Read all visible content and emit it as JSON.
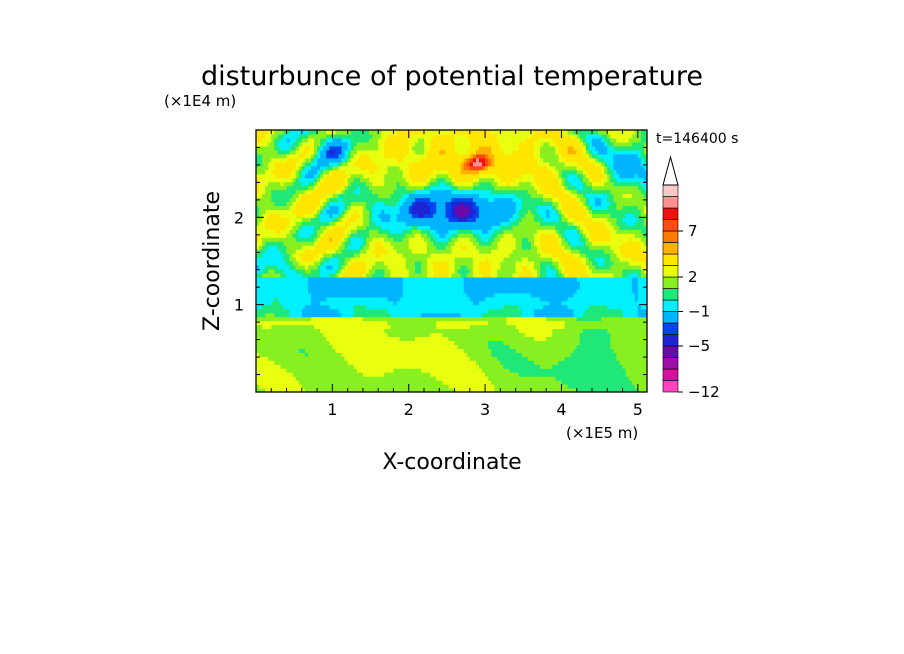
{
  "chart_data": {
    "type": "heatmap",
    "title": "disturbunce of potential temperature",
    "xlabel": "X-coordinate",
    "ylabel": "Z-coordinate",
    "x_unit": "(×1E5 m)",
    "y_unit": "(×1E4 m)",
    "time_label": "t=146400 s",
    "xlim": [
      0,
      5.12
    ],
    "ylim": [
      0,
      3.0
    ],
    "x_ticks": [
      {
        "value": 1,
        "label": "1"
      },
      {
        "value": 2,
        "label": "2"
      },
      {
        "value": 3,
        "label": "3"
      },
      {
        "value": 4,
        "label": "4"
      },
      {
        "value": 5,
        "label": "5"
      }
    ],
    "y_ticks": [
      {
        "value": 1,
        "label": "1"
      },
      {
        "value": 2,
        "label": "2"
      }
    ],
    "colorbar": {
      "levels": [
        -12,
        -10,
        -8,
        -6,
        -5,
        -4,
        -3,
        -1,
        0,
        1,
        2,
        3,
        5,
        6,
        7,
        8,
        9,
        10
      ],
      "colors": [
        "#ff44c0",
        "#d8109e",
        "#9d0ea6",
        "#6a0aa8",
        "#1f24d2",
        "#0046f0",
        "#00b4ff",
        "#00f0ff",
        "#20e878",
        "#88f020",
        "#e8ff10",
        "#ffe600",
        "#ffb000",
        "#ff7a00",
        "#ff4a16",
        "#f01010",
        "#ff9090",
        "#ffc8c8"
      ],
      "tick_labels": [
        {
          "level": -12,
          "label": "−12"
        },
        {
          "level": -5,
          "label": "−5"
        },
        {
          "level": -1,
          "label": "−1"
        },
        {
          "level": 2,
          "label": "2"
        },
        {
          "level": 7,
          "label": "7"
        }
      ],
      "extend": "max"
    },
    "field_features": [
      {
        "region": "lower layer (z 0–0.9)",
        "value_range": [
          1,
          3
        ]
      },
      {
        "region": "middle band (z 0.9–1.3)",
        "value_range": [
          -1,
          0
        ]
      },
      {
        "region": "upper wave region (z 1.3–3.0)",
        "value_range": [
          -8,
          8
        ]
      }
    ]
  }
}
